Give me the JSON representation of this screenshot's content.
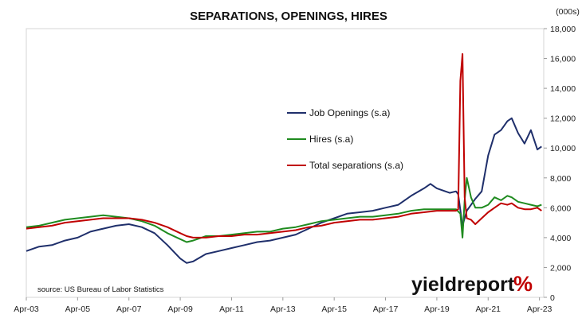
{
  "chart_data": {
    "type": "line",
    "title": "SEPARATIONS, OPENINGS, HIRES",
    "unit_label": "(000s)",
    "source": "source: US Bureau of Labor Statistics",
    "brand": {
      "text": "yieldreport",
      "symbol": "%",
      "symbol_colors": [
        "#c00000",
        "#2e8b2e"
      ]
    },
    "x_axis": {
      "ticks": [
        "Apr-03",
        "Apr-05",
        "Apr-07",
        "Apr-09",
        "Apr-11",
        "Apr-13",
        "Apr-15",
        "Apr-17",
        "Apr-19",
        "Apr-21",
        "Apr-23"
      ],
      "range": [
        "2003-04",
        "2023-06"
      ]
    },
    "y_axis": {
      "side": "right",
      "ylim": [
        0,
        18000
      ],
      "ticks": [
        "0",
        "2,000",
        "4,000",
        "6,000",
        "8,000",
        "10,000",
        "12,000",
        "14,000",
        "16,000",
        "18,000"
      ]
    },
    "grid": false,
    "legend": {
      "placement": "center"
    },
    "series": [
      {
        "name": "Job Openings (s.a)",
        "color": "#1f2f6b",
        "points": [
          [
            "2003-04",
            3100
          ],
          [
            "2003-10",
            3400
          ],
          [
            "2004-04",
            3500
          ],
          [
            "2004-10",
            3800
          ],
          [
            "2005-04",
            4000
          ],
          [
            "2005-10",
            4400
          ],
          [
            "2006-04",
            4600
          ],
          [
            "2006-10",
            4800
          ],
          [
            "2007-04",
            4900
          ],
          [
            "2007-10",
            4700
          ],
          [
            "2008-04",
            4300
          ],
          [
            "2008-10",
            3500
          ],
          [
            "2009-04",
            2600
          ],
          [
            "2009-07",
            2300
          ],
          [
            "2009-10",
            2400
          ],
          [
            "2010-04",
            2900
          ],
          [
            "2010-10",
            3100
          ],
          [
            "2011-04",
            3300
          ],
          [
            "2011-10",
            3500
          ],
          [
            "2012-04",
            3700
          ],
          [
            "2012-10",
            3800
          ],
          [
            "2013-04",
            4000
          ],
          [
            "2013-10",
            4200
          ],
          [
            "2014-04",
            4600
          ],
          [
            "2014-10",
            5000
          ],
          [
            "2015-04",
            5300
          ],
          [
            "2015-10",
            5600
          ],
          [
            "2016-04",
            5700
          ],
          [
            "2016-10",
            5800
          ],
          [
            "2017-04",
            6000
          ],
          [
            "2017-10",
            6200
          ],
          [
            "2018-04",
            6800
          ],
          [
            "2018-10",
            7300
          ],
          [
            "2019-01",
            7600
          ],
          [
            "2019-04",
            7300
          ],
          [
            "2019-10",
            7000
          ],
          [
            "2020-01",
            7100
          ],
          [
            "2020-02",
            6900
          ],
          [
            "2020-04",
            4800
          ],
          [
            "2020-06",
            5800
          ],
          [
            "2020-10",
            6600
          ],
          [
            "2021-01",
            7100
          ],
          [
            "2021-04",
            9500
          ],
          [
            "2021-07",
            10900
          ],
          [
            "2021-10",
            11200
          ],
          [
            "2022-01",
            11800
          ],
          [
            "2022-03",
            12000
          ],
          [
            "2022-06",
            11000
          ],
          [
            "2022-09",
            10300
          ],
          [
            "2022-12",
            11200
          ],
          [
            "2023-03",
            9900
          ],
          [
            "2023-05",
            10100
          ]
        ]
      },
      {
        "name": "Hires (s.a)",
        "color": "#1f8b1f",
        "points": [
          [
            "2003-04",
            4700
          ],
          [
            "2003-10",
            4800
          ],
          [
            "2004-04",
            5000
          ],
          [
            "2004-10",
            5200
          ],
          [
            "2005-04",
            5300
          ],
          [
            "2005-10",
            5400
          ],
          [
            "2006-04",
            5500
          ],
          [
            "2006-10",
            5400
          ],
          [
            "2007-04",
            5300
          ],
          [
            "2007-10",
            5100
          ],
          [
            "2008-04",
            4800
          ],
          [
            "2008-10",
            4300
          ],
          [
            "2009-04",
            3900
          ],
          [
            "2009-07",
            3700
          ],
          [
            "2009-10",
            3800
          ],
          [
            "2010-04",
            4100
          ],
          [
            "2010-10",
            4100
          ],
          [
            "2011-04",
            4200
          ],
          [
            "2011-10",
            4300
          ],
          [
            "2012-04",
            4400
          ],
          [
            "2012-10",
            4400
          ],
          [
            "2013-04",
            4600
          ],
          [
            "2013-10",
            4700
          ],
          [
            "2014-04",
            4900
          ],
          [
            "2014-10",
            5100
          ],
          [
            "2015-04",
            5200
          ],
          [
            "2015-10",
            5300
          ],
          [
            "2016-04",
            5400
          ],
          [
            "2016-10",
            5400
          ],
          [
            "2017-04",
            5500
          ],
          [
            "2017-10",
            5600
          ],
          [
            "2018-04",
            5800
          ],
          [
            "2018-10",
            5900
          ],
          [
            "2019-04",
            5900
          ],
          [
            "2019-10",
            5900
          ],
          [
            "2020-01",
            5900
          ],
          [
            "2020-03",
            5600
          ],
          [
            "2020-04",
            4000
          ],
          [
            "2020-05",
            6500
          ],
          [
            "2020-06",
            8000
          ],
          [
            "2020-08",
            6700
          ],
          [
            "2020-10",
            6000
          ],
          [
            "2021-01",
            6000
          ],
          [
            "2021-04",
            6200
          ],
          [
            "2021-07",
            6700
          ],
          [
            "2021-10",
            6500
          ],
          [
            "2022-01",
            6800
          ],
          [
            "2022-03",
            6700
          ],
          [
            "2022-06",
            6400
          ],
          [
            "2022-09",
            6300
          ],
          [
            "2022-12",
            6200
          ],
          [
            "2023-03",
            6100
          ],
          [
            "2023-05",
            6200
          ]
        ]
      },
      {
        "name": "Total separations (s.a)",
        "color": "#c00000",
        "points": [
          [
            "2003-04",
            4600
          ],
          [
            "2003-10",
            4700
          ],
          [
            "2004-04",
            4800
          ],
          [
            "2004-10",
            5000
          ],
          [
            "2005-04",
            5100
          ],
          [
            "2005-10",
            5200
          ],
          [
            "2006-04",
            5300
          ],
          [
            "2006-10",
            5300
          ],
          [
            "2007-04",
            5300
          ],
          [
            "2007-10",
            5200
          ],
          [
            "2008-04",
            5000
          ],
          [
            "2008-10",
            4700
          ],
          [
            "2009-04",
            4300
          ],
          [
            "2009-07",
            4100
          ],
          [
            "2009-10",
            4000
          ],
          [
            "2010-04",
            4000
          ],
          [
            "2010-10",
            4100
          ],
          [
            "2011-04",
            4100
          ],
          [
            "2011-10",
            4200
          ],
          [
            "2012-04",
            4200
          ],
          [
            "2012-10",
            4300
          ],
          [
            "2013-04",
            4400
          ],
          [
            "2013-10",
            4500
          ],
          [
            "2014-04",
            4700
          ],
          [
            "2014-10",
            4800
          ],
          [
            "2015-04",
            5000
          ],
          [
            "2015-10",
            5100
          ],
          [
            "2016-04",
            5200
          ],
          [
            "2016-10",
            5200
          ],
          [
            "2017-04",
            5300
          ],
          [
            "2017-10",
            5400
          ],
          [
            "2018-04",
            5600
          ],
          [
            "2018-10",
            5700
          ],
          [
            "2019-04",
            5800
          ],
          [
            "2019-10",
            5800
          ],
          [
            "2020-01",
            5800
          ],
          [
            "2020-02",
            5900
          ],
          [
            "2020-03",
            14500
          ],
          [
            "2020-04",
            16300
          ],
          [
            "2020-05",
            6700
          ],
          [
            "2020-06",
            5300
          ],
          [
            "2020-08",
            5200
          ],
          [
            "2020-10",
            4900
          ],
          [
            "2021-01",
            5300
          ],
          [
            "2021-04",
            5700
          ],
          [
            "2021-07",
            6000
          ],
          [
            "2021-10",
            6300
          ],
          [
            "2022-01",
            6200
          ],
          [
            "2022-03",
            6300
          ],
          [
            "2022-06",
            6000
          ],
          [
            "2022-09",
            5900
          ],
          [
            "2022-12",
            5900
          ],
          [
            "2023-03",
            6000
          ],
          [
            "2023-05",
            5800
          ]
        ]
      }
    ]
  }
}
